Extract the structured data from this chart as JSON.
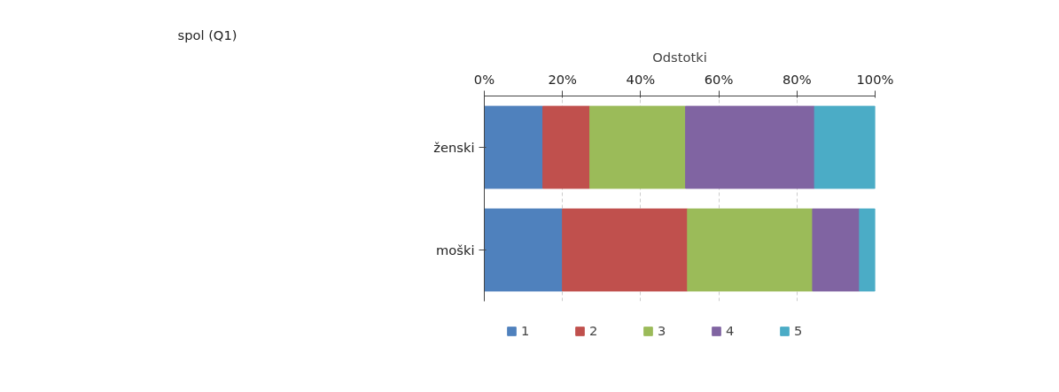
{
  "chart_data": {
    "type": "bar",
    "orientation": "horizontal",
    "stacked": true,
    "title": "spol (Q1)",
    "xlabel": "Odstotki",
    "categories": [
      "ženski",
      "moški"
    ],
    "series": [
      {
        "name": "1",
        "color": "#4f81bd",
        "values": [
          15,
          20
        ]
      },
      {
        "name": "2",
        "color": "#c0504d",
        "values": [
          12,
          32
        ]
      },
      {
        "name": "3",
        "color": "#9bbb59",
        "values": [
          24.5,
          32
        ]
      },
      {
        "name": "4",
        "color": "#8064a2",
        "values": [
          33,
          12
        ]
      },
      {
        "name": "5",
        "color": "#4bacc6",
        "values": [
          15.5,
          4
        ]
      }
    ],
    "xlim": [
      0,
      100
    ],
    "xticks": [
      {
        "value": 0,
        "label": "0%"
      },
      {
        "value": 20,
        "label": "20%"
      },
      {
        "value": 40,
        "label": "40%"
      },
      {
        "value": 60,
        "label": "60%"
      },
      {
        "value": 80,
        "label": "80%"
      },
      {
        "value": 100,
        "label": "100%"
      }
    ],
    "grid": "x",
    "legend": "bottom"
  }
}
